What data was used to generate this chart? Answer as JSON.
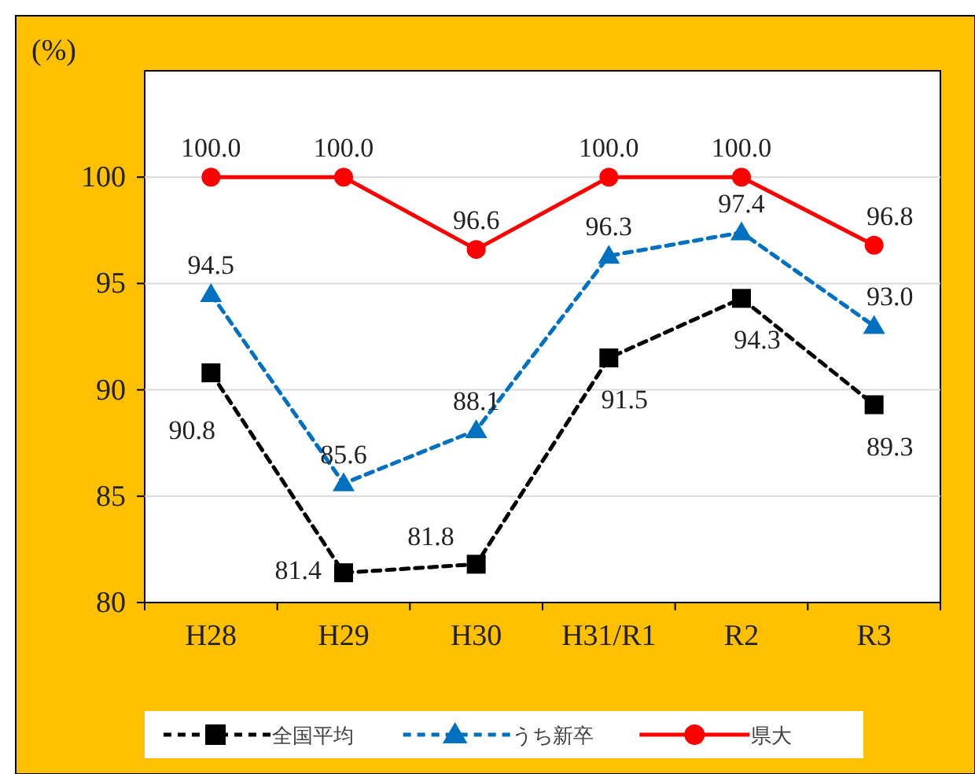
{
  "chart_data": {
    "type": "line",
    "ylabel": "(%)",
    "categories": [
      "H28",
      "H29",
      "H30",
      "H31/R1",
      "R2",
      "R3"
    ],
    "series": [
      {
        "name": "全国平均",
        "color": "#000000",
        "marker": "square",
        "line_style": "dashed",
        "values": [
          90.8,
          81.4,
          81.8,
          91.5,
          94.3,
          89.3
        ],
        "value_labels": [
          "90.8",
          "81.4",
          "81.8",
          "91.5",
          "94.3",
          "89.3"
        ]
      },
      {
        "name": "うち新卒",
        "color": "#0070c0",
        "marker": "triangle",
        "line_style": "dashed",
        "values": [
          94.5,
          85.6,
          88.1,
          96.3,
          97.4,
          93.0
        ],
        "value_labels": [
          "94.5",
          "85.6",
          "88.1",
          "96.3",
          "97.4",
          "93.0"
        ]
      },
      {
        "name": "県大",
        "color": "#ff0000",
        "marker": "circle",
        "line_style": "solid",
        "values": [
          100.0,
          100.0,
          96.6,
          100.0,
          100.0,
          96.8
        ],
        "value_labels": [
          "100.0",
          "100.0",
          "96.6",
          "100.0",
          "100.0",
          "96.8"
        ]
      }
    ],
    "ylim": [
      80,
      105
    ],
    "yticks": [
      80,
      85,
      90,
      95,
      100
    ],
    "grid": "y",
    "legend": "bottom"
  }
}
